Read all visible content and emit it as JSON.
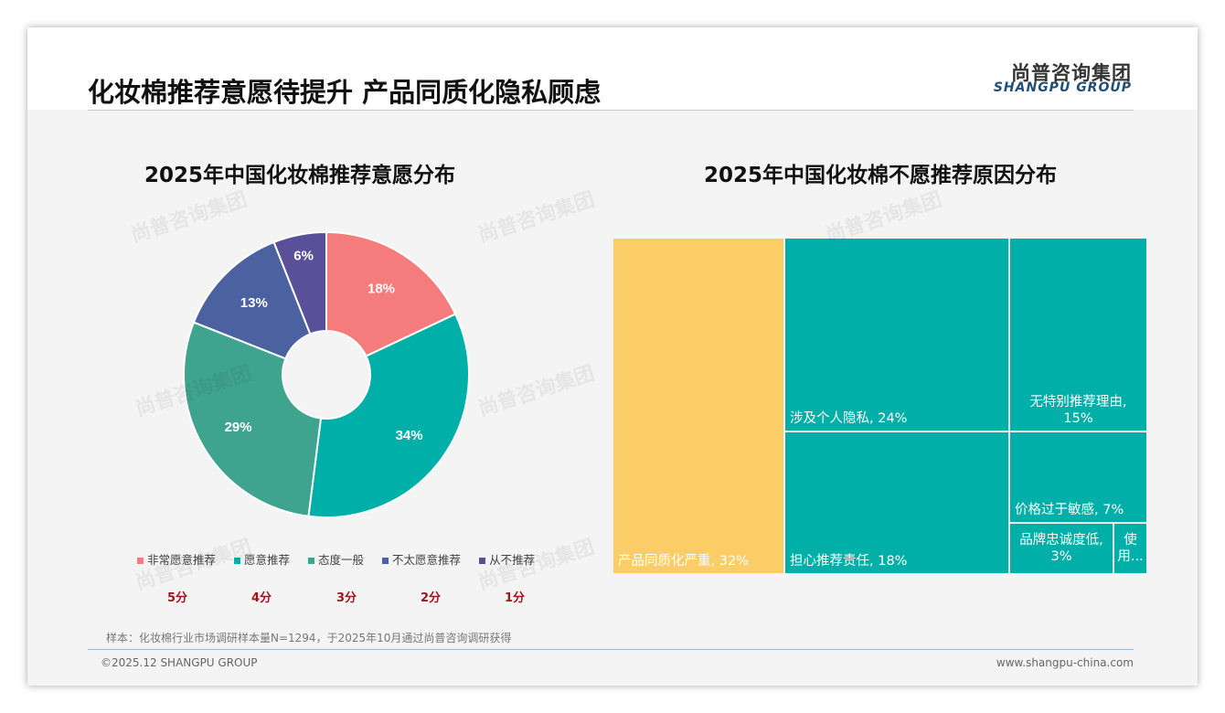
{
  "title": "化妆棉推荐意愿待提升 产品同质化隐私顾虑",
  "logo": {
    "cn": "尚普咨询集团",
    "en": "SHANGPU GROUP"
  },
  "chart_data": [
    {
      "type": "pie",
      "title": "2025年中国化妆棉推荐意愿分布",
      "categories": [
        "非常愿意推荐",
        "愿意推荐",
        "态度一般",
        "不太愿意推荐",
        "从不推荐"
      ],
      "values": [
        18,
        34,
        29,
        13,
        6
      ],
      "labels": [
        "18%",
        "34%",
        "29%",
        "13%",
        "6%"
      ],
      "colors": [
        "#f47c7c",
        "#00b0a8",
        "#3fa48f",
        "#4c62a0",
        "#5a4f99"
      ],
      "scores": [
        "5分",
        "4分",
        "3分",
        "2分",
        "1分"
      ],
      "legend": "bottom"
    },
    {
      "type": "treemap",
      "title": "2025年中国化妆棉不愿推荐原因分布",
      "items": [
        {
          "label": "产品同质化严重, 32%",
          "value": 32,
          "color": "#fbcd66"
        },
        {
          "label": "涉及个人隐私, 24%",
          "value": 24,
          "color": "#00b0a8"
        },
        {
          "label": "担心推荐责任, 18%",
          "value": 18,
          "color": "#00b0a8"
        },
        {
          "label": "无特别推荐理由, 15%",
          "value": 15,
          "color": "#00b0a8"
        },
        {
          "label": "价格过于敏感, 7%",
          "value": 7,
          "color": "#00b0a8"
        },
        {
          "label": "品牌忠诚度低, 3%",
          "value": 3,
          "color": "#00b0a8"
        },
        {
          "label": "使用...",
          "value": 1,
          "color": "#00b0a8"
        }
      ]
    }
  ],
  "note": "样本：化妆棉行业市场调研样本量N=1294，于2025年10月通过尚普咨询调研获得",
  "footer": {
    "left": "©2025.12 SHANGPU GROUP",
    "right": "www.shangpu-china.com"
  }
}
